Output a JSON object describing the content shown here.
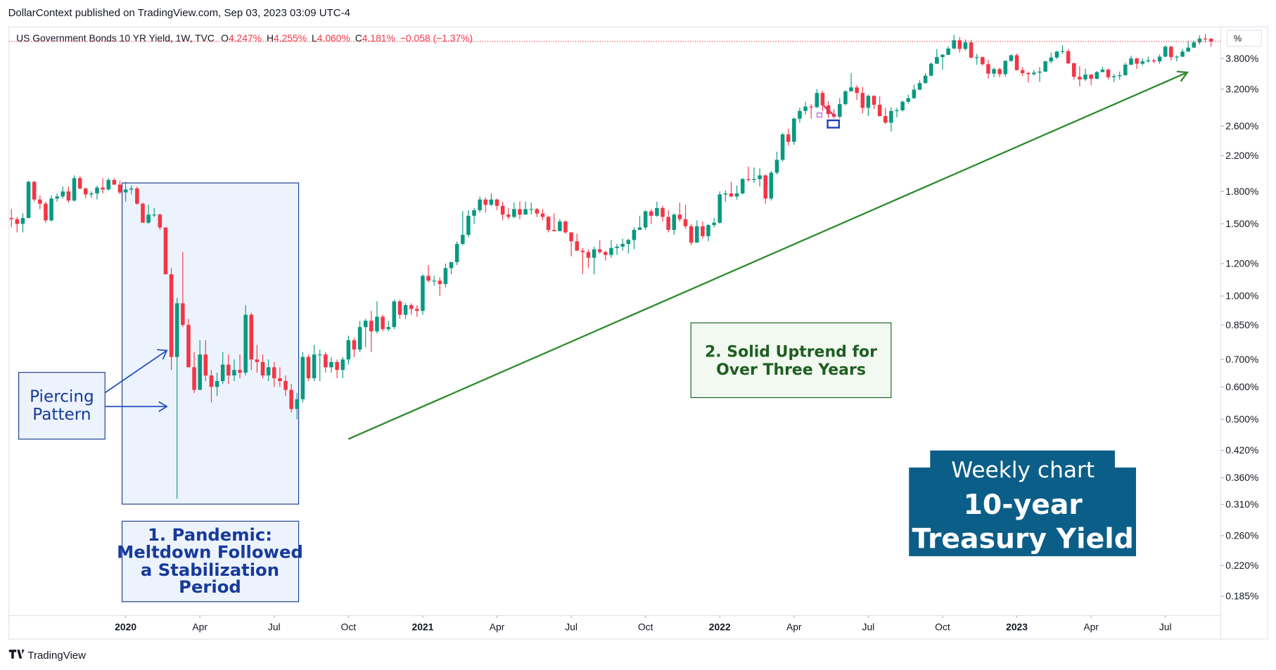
{
  "header": "DollarContext published on TradingView.com, Sep 03, 2023 03:09 UTC-4",
  "footer": "TradingView",
  "chart_data": {
    "type": "candlestick",
    "legend": {
      "symbol": "US Government Bonds 10 YR Yield, 1W, TVC",
      "fields": [
        {
          "key": "O",
          "value": "4.247%"
        },
        {
          "key": "H",
          "value": "4.255%"
        },
        {
          "key": "L",
          "value": "4.060%"
        },
        {
          "key": "C",
          "value": "4.181%"
        }
      ],
      "change": "−0.058 (−1.37%)"
    },
    "y_unit": "%",
    "log_scale": true,
    "grid": false,
    "up_color": "#089981",
    "down_color": "#f23645",
    "ylim": [
      0.166,
      4.54
    ],
    "yticks": [
      {
        "value": 3.8,
        "label": "3.800%"
      },
      {
        "value": 3.2,
        "label": "3.200%"
      },
      {
        "value": 2.6,
        "label": "2.600%"
      },
      {
        "value": 2.2,
        "label": "2.200%"
      },
      {
        "value": 1.8,
        "label": "1.800%"
      },
      {
        "value": 1.5,
        "label": "1.500%"
      },
      {
        "value": 1.2,
        "label": "1.200%"
      },
      {
        "value": 1.0,
        "label": "1.000%"
      },
      {
        "value": 0.85,
        "label": "0.850%"
      },
      {
        "value": 0.7,
        "label": "0.700%"
      },
      {
        "value": 0.6,
        "label": "0.600%"
      },
      {
        "value": 0.5,
        "label": "0.500%"
      },
      {
        "value": 0.42,
        "label": "0.420%"
      },
      {
        "value": 0.36,
        "label": "0.360%"
      },
      {
        "value": 0.31,
        "label": "0.310%"
      },
      {
        "value": 0.26,
        "label": "0.260%"
      },
      {
        "value": 0.22,
        "label": "0.220%"
      },
      {
        "value": 0.185,
        "label": "0.185%"
      }
    ],
    "xticks": [
      {
        "value": "2020-01",
        "label": "2020"
      },
      {
        "value": "2020-04",
        "label": "Apr"
      },
      {
        "value": "2020-07",
        "label": "Jul"
      },
      {
        "value": "2020-10",
        "label": "Oct"
      },
      {
        "value": "2021-01",
        "label": "2021"
      },
      {
        "value": "2021-04",
        "label": "Apr"
      },
      {
        "value": "2021-07",
        "label": "Jul"
      },
      {
        "value": "2021-10",
        "label": "Oct"
      },
      {
        "value": "2022-01",
        "label": "2022"
      },
      {
        "value": "2022-04",
        "label": "Apr"
      },
      {
        "value": "2022-07",
        "label": "Jul"
      },
      {
        "value": "2022-10",
        "label": "Oct"
      },
      {
        "value": "2023-01",
        "label": "2023"
      },
      {
        "value": "2023-04",
        "label": "Apr"
      },
      {
        "value": "2023-07",
        "label": "Jul"
      }
    ],
    "open": [
      1.55,
      1.54,
      1.5,
      1.55,
      1.9,
      1.72,
      1.68,
      1.53,
      1.73,
      1.75,
      1.8,
      1.71,
      1.94,
      1.83,
      1.77,
      1.78,
      1.84,
      1.82,
      1.92,
      1.87,
      1.79,
      1.82,
      1.83,
      1.68,
      1.51,
      1.58,
      1.58,
      1.47,
      1.13,
      0.71,
      0.96,
      0.85,
      0.67,
      0.59,
      0.72,
      0.64,
      0.6,
      0.62,
      0.68,
      0.64,
      0.66,
      0.65,
      0.9,
      0.7,
      0.69,
      0.64,
      0.67,
      0.63,
      0.62,
      0.59,
      0.53,
      0.56,
      0.71,
      0.63,
      0.72,
      0.72,
      0.67,
      0.69,
      0.66,
      0.7,
      0.78,
      0.74,
      0.84,
      0.87,
      0.82,
      0.89,
      0.83,
      0.84,
      0.97,
      0.9,
      0.95,
      0.93,
      0.92,
      1.12,
      1.09,
      1.09,
      1.07,
      1.17,
      1.21,
      1.34,
      1.41,
      1.57,
      1.62,
      1.72,
      1.67,
      1.72,
      1.66,
      1.58,
      1.56,
      1.63,
      1.58,
      1.63,
      1.63,
      1.59,
      1.56,
      1.45,
      1.44,
      1.52,
      1.43,
      1.36,
      1.29,
      1.28,
      1.24,
      1.3,
      1.28,
      1.26,
      1.31,
      1.32,
      1.34,
      1.37,
      1.45,
      1.47,
      1.61,
      1.57,
      1.64,
      1.56,
      1.45,
      1.58,
      1.54,
      1.48,
      1.35,
      1.48,
      1.4,
      1.49,
      1.51,
      1.77,
      1.78,
      1.75,
      1.78,
      1.93,
      1.92,
      1.93,
      1.97,
      1.73,
      2.0,
      2.15,
      2.48,
      2.38,
      2.71,
      2.83,
      2.9,
      2.89,
      3.13,
      2.92,
      2.78,
      2.74,
      2.94,
      3.16,
      3.23,
      3.13,
      2.88,
      3.08,
      2.93,
      2.75,
      2.65,
      2.83,
      2.84,
      2.98,
      3.04,
      3.19,
      3.31,
      3.45,
      3.69,
      3.83,
      3.88,
      4.02,
      4.21,
      4.01,
      4.16,
      3.82,
      3.83,
      3.68,
      3.49,
      3.58,
      3.48,
      3.75,
      3.87,
      3.56,
      3.5,
      3.48,
      3.51,
      3.53,
      3.74,
      3.82,
      3.95,
      3.96,
      3.7,
      3.43,
      3.38,
      3.47,
      3.39,
      3.52,
      3.57,
      3.42,
      3.44,
      3.46,
      3.67,
      3.8,
      3.69,
      3.74,
      3.76,
      3.74,
      3.84,
      4.06,
      3.83,
      3.84,
      3.95,
      4.04,
      4.16,
      4.25,
      4.247
    ],
    "high": [
      1.63,
      1.56,
      1.59,
      1.91,
      1.91,
      1.76,
      1.7,
      1.76,
      1.78,
      1.85,
      1.85,
      1.97,
      1.96,
      1.84,
      1.8,
      1.86,
      1.94,
      1.94,
      1.94,
      1.91,
      1.9,
      1.86,
      1.85,
      1.69,
      1.67,
      1.64,
      1.59,
      1.47,
      1.17,
      0.99,
      1.28,
      0.88,
      0.73,
      0.78,
      0.78,
      0.66,
      0.65,
      0.73,
      0.72,
      0.7,
      0.72,
      0.95,
      0.91,
      0.76,
      0.72,
      0.7,
      0.69,
      0.67,
      0.64,
      0.61,
      0.58,
      0.73,
      0.72,
      0.76,
      0.74,
      0.73,
      0.71,
      0.7,
      0.71,
      0.8,
      0.79,
      0.87,
      0.88,
      0.92,
      0.97,
      0.9,
      0.87,
      0.98,
      0.98,
      0.96,
      0.96,
      0.95,
      1.13,
      1.19,
      1.12,
      1.11,
      1.2,
      1.21,
      1.36,
      1.61,
      1.62,
      1.64,
      1.75,
      1.74,
      1.78,
      1.73,
      1.7,
      1.64,
      1.69,
      1.7,
      1.7,
      1.69,
      1.64,
      1.63,
      1.57,
      1.59,
      1.54,
      1.53,
      1.43,
      1.42,
      1.31,
      1.3,
      1.32,
      1.37,
      1.29,
      1.37,
      1.34,
      1.38,
      1.38,
      1.47,
      1.57,
      1.62,
      1.63,
      1.7,
      1.66,
      1.62,
      1.59,
      1.69,
      1.67,
      1.5,
      1.53,
      1.52,
      1.5,
      1.55,
      1.8,
      1.81,
      1.9,
      1.86,
      1.94,
      2.07,
      2.06,
      2.05,
      1.98,
      2.02,
      2.25,
      2.5,
      2.56,
      2.73,
      2.88,
      2.98,
      2.94,
      3.2,
      3.17,
      2.99,
      2.86,
      3.04,
      3.18,
      3.5,
      3.27,
      3.24,
      3.1,
      3.09,
      3.07,
      2.88,
      2.89,
      2.88,
      3.0,
      3.1,
      3.28,
      3.36,
      3.5,
      3.72,
      4.01,
      3.9,
      4.07,
      4.34,
      4.29,
      4.23,
      4.22,
      3.9,
      3.84,
      3.77,
      3.61,
      3.61,
      3.76,
      3.89,
      3.91,
      3.62,
      3.53,
      3.56,
      3.62,
      3.75,
      3.93,
      3.97,
      4.09,
      4.01,
      3.71,
      3.64,
      3.59,
      3.48,
      3.54,
      3.63,
      3.59,
      3.48,
      3.53,
      3.71,
      3.86,
      3.82,
      3.8,
      3.84,
      3.8,
      3.89,
      4.09,
      4.08,
      3.87,
      4.01,
      4.2,
      4.2,
      4.33,
      4.36,
      4.255
    ],
    "low": [
      1.47,
      1.43,
      1.43,
      1.55,
      1.7,
      1.63,
      1.51,
      1.52,
      1.7,
      1.73,
      1.69,
      1.7,
      1.82,
      1.73,
      1.74,
      1.72,
      1.78,
      1.81,
      1.87,
      1.77,
      1.7,
      1.77,
      1.67,
      1.51,
      1.5,
      1.56,
      1.45,
      1.13,
      0.66,
      0.32,
      0.84,
      0.67,
      0.58,
      0.59,
      0.62,
      0.55,
      0.57,
      0.61,
      0.61,
      0.62,
      0.63,
      0.64,
      0.66,
      0.65,
      0.63,
      0.62,
      0.6,
      0.6,
      0.57,
      0.52,
      0.5,
      0.55,
      0.62,
      0.62,
      0.62,
      0.65,
      0.65,
      0.63,
      0.63,
      0.68,
      0.71,
      0.73,
      0.75,
      0.73,
      0.81,
      0.82,
      0.82,
      0.83,
      0.88,
      0.88,
      0.9,
      0.89,
      0.9,
      1.08,
      1.06,
      1.0,
      1.05,
      1.13,
      1.19,
      1.33,
      1.39,
      1.5,
      1.6,
      1.6,
      1.66,
      1.62,
      1.53,
      1.54,
      1.55,
      1.54,
      1.58,
      1.58,
      1.56,
      1.53,
      1.43,
      1.44,
      1.44,
      1.42,
      1.25,
      1.29,
      1.13,
      1.17,
      1.13,
      1.27,
      1.22,
      1.24,
      1.26,
      1.29,
      1.27,
      1.3,
      1.45,
      1.45,
      1.5,
      1.56,
      1.52,
      1.43,
      1.41,
      1.52,
      1.46,
      1.33,
      1.35,
      1.38,
      1.36,
      1.47,
      1.5,
      1.7,
      1.74,
      1.72,
      1.77,
      1.9,
      1.89,
      1.85,
      1.68,
      1.71,
      1.98,
      2.13,
      2.33,
      2.34,
      2.65,
      2.77,
      2.71,
      2.88,
      2.83,
      2.72,
      2.71,
      2.71,
      2.92,
      3.16,
      3.01,
      2.79,
      2.75,
      2.86,
      2.74,
      2.63,
      2.52,
      2.73,
      2.82,
      2.95,
      3.03,
      3.18,
      3.3,
      3.44,
      3.69,
      3.57,
      3.87,
      4.0,
      3.93,
      3.97,
      3.8,
      3.67,
      3.65,
      3.4,
      3.42,
      3.42,
      3.43,
      3.73,
      3.55,
      3.44,
      3.32,
      3.45,
      3.33,
      3.52,
      3.7,
      3.79,
      3.9,
      3.68,
      3.37,
      3.25,
      3.35,
      3.27,
      3.38,
      3.52,
      3.38,
      3.33,
      3.37,
      3.45,
      3.66,
      3.58,
      3.66,
      3.71,
      3.7,
      3.69,
      3.83,
      3.76,
      3.74,
      3.83,
      3.95,
      4.03,
      4.11,
      4.16,
      4.06
    ],
    "close": [
      1.54,
      1.5,
      1.55,
      1.9,
      1.72,
      1.68,
      1.53,
      1.73,
      1.75,
      1.8,
      1.71,
      1.94,
      1.83,
      1.77,
      1.78,
      1.84,
      1.82,
      1.92,
      1.87,
      1.79,
      1.82,
      1.83,
      1.68,
      1.51,
      1.58,
      1.58,
      1.47,
      1.13,
      0.71,
      0.96,
      0.85,
      0.67,
      0.59,
      0.72,
      0.64,
      0.6,
      0.62,
      0.68,
      0.64,
      0.66,
      0.65,
      0.9,
      0.7,
      0.69,
      0.64,
      0.67,
      0.63,
      0.62,
      0.59,
      0.53,
      0.56,
      0.71,
      0.63,
      0.72,
      0.72,
      0.67,
      0.69,
      0.66,
      0.7,
      0.78,
      0.74,
      0.84,
      0.87,
      0.82,
      0.89,
      0.83,
      0.84,
      0.97,
      0.9,
      0.95,
      0.93,
      0.92,
      1.12,
      1.09,
      1.09,
      1.07,
      1.17,
      1.21,
      1.34,
      1.41,
      1.57,
      1.62,
      1.72,
      1.67,
      1.72,
      1.66,
      1.58,
      1.56,
      1.63,
      1.58,
      1.63,
      1.63,
      1.59,
      1.56,
      1.45,
      1.44,
      1.52,
      1.43,
      1.36,
      1.29,
      1.28,
      1.24,
      1.3,
      1.28,
      1.26,
      1.31,
      1.32,
      1.34,
      1.37,
      1.45,
      1.47,
      1.61,
      1.57,
      1.64,
      1.56,
      1.45,
      1.58,
      1.54,
      1.48,
      1.35,
      1.48,
      1.4,
      1.49,
      1.51,
      1.77,
      1.78,
      1.75,
      1.78,
      1.93,
      1.92,
      1.93,
      1.97,
      1.73,
      2.0,
      2.15,
      2.48,
      2.38,
      2.71,
      2.83,
      2.9,
      2.89,
      3.13,
      2.92,
      2.78,
      2.74,
      2.94,
      3.16,
      3.23,
      3.13,
      2.88,
      3.08,
      2.93,
      2.75,
      2.65,
      2.83,
      2.84,
      2.98,
      3.04,
      3.19,
      3.31,
      3.45,
      3.69,
      3.83,
      3.88,
      4.02,
      4.21,
      4.01,
      4.16,
      3.82,
      3.83,
      3.68,
      3.49,
      3.58,
      3.48,
      3.75,
      3.87,
      3.56,
      3.5,
      3.48,
      3.51,
      3.53,
      3.74,
      3.82,
      3.95,
      3.96,
      3.7,
      3.43,
      3.38,
      3.47,
      3.39,
      3.52,
      3.57,
      3.42,
      3.44,
      3.46,
      3.67,
      3.8,
      3.69,
      3.74,
      3.76,
      3.74,
      3.84,
      4.06,
      3.83,
      3.84,
      3.95,
      4.04,
      4.16,
      4.25,
      4.24,
      4.181
    ],
    "annotations": {
      "piercing": [
        "Piercing",
        "Pattern"
      ],
      "pandemic": [
        "1. Pandemic:",
        "Meltdown Followed",
        "a Stabilization",
        "Period"
      ],
      "uptrend": [
        "2. Solid Uptrend for",
        "Over Three Years"
      ],
      "badge": {
        "subtitle": "Weekly chart",
        "title": [
          "10-year",
          "Treasury Yield"
        ]
      }
    }
  }
}
